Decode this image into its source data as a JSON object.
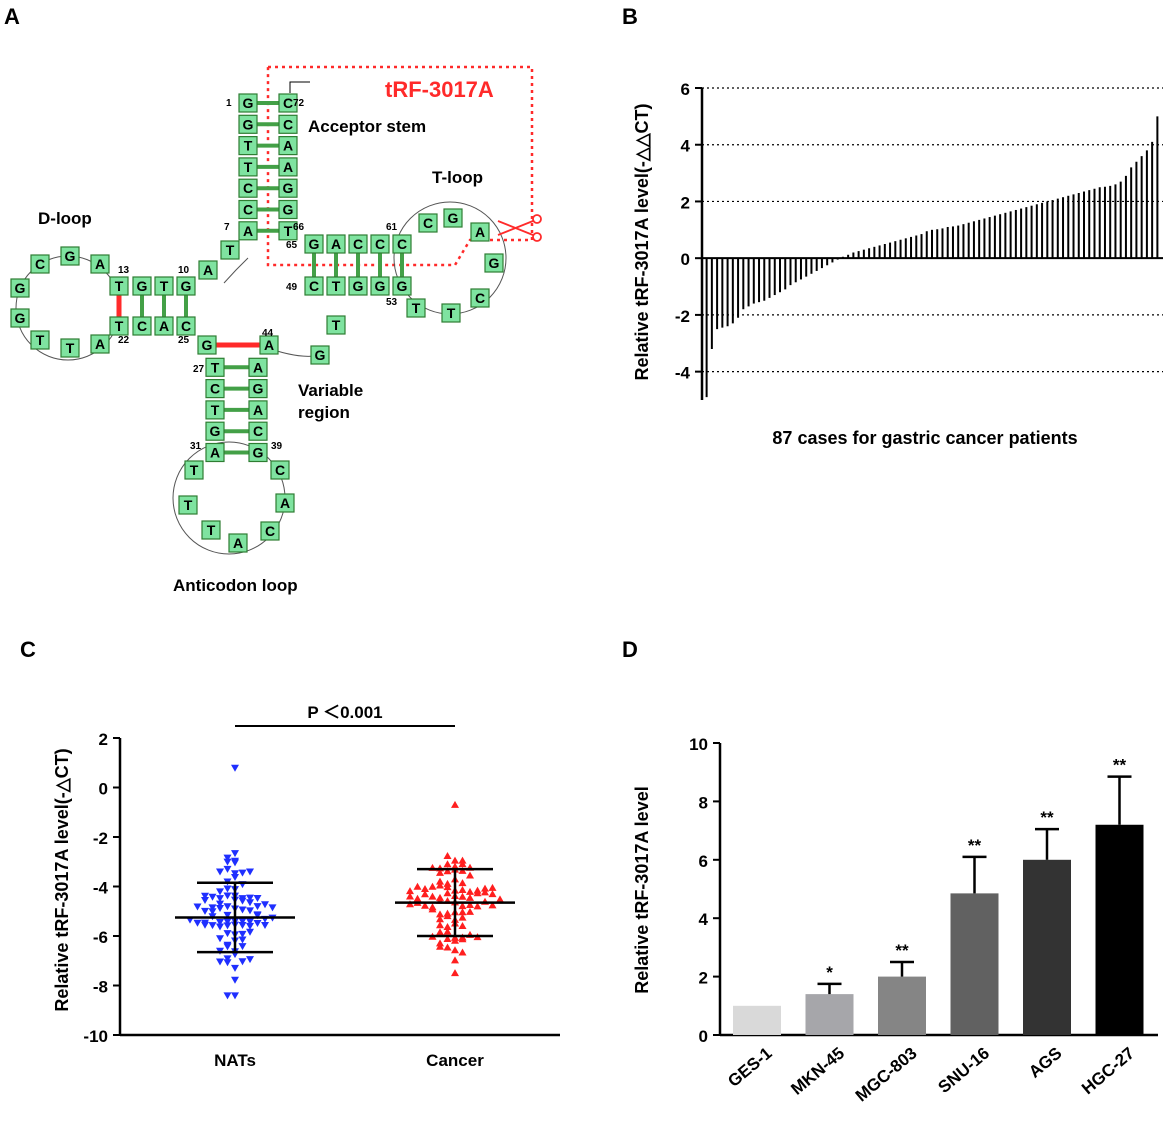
{
  "panels": {
    "a": "A",
    "b": "B",
    "c": "C",
    "d": "D"
  },
  "colors": {
    "nucleotide_fill": "#7fe3a0",
    "nucleotide_stroke": "#2e7d32",
    "highlight_red": "#ff2a2a",
    "nats_blue": "#1f2fff",
    "cancer_red": "#ff1f1f",
    "bar_colors": [
      "#d9d9d9",
      "#a6a6aa",
      "#858585",
      "#616161",
      "#333333",
      "#000000"
    ]
  },
  "structure": {
    "fragment_label": "tRF-3017A",
    "acceptor_stem": "Acceptor stem",
    "t_loop": "T-loop",
    "d_loop": "D-loop",
    "variable_region": [
      "Variable",
      "region"
    ],
    "anticodon_loop": "Anticodon loop",
    "numbers": [
      "1",
      "72",
      "7",
      "66",
      "65",
      "61",
      "49",
      "53",
      "10",
      "13",
      "22",
      "25",
      "44",
      "27",
      "31",
      "39"
    ],
    "acceptor_5prime": [
      "G",
      "G",
      "T",
      "T",
      "C",
      "C",
      "A"
    ],
    "acceptor_3prime": [
      "C",
      "C",
      "A",
      "A",
      "G",
      "G",
      "T"
    ],
    "connector_7_10": [
      "T",
      "A"
    ],
    "d_stem_top": [
      "T",
      "G",
      "T",
      "G"
    ],
    "d_stem_bottom": [
      "T",
      "C",
      "A",
      "C"
    ],
    "d_loop_seq": [
      "A",
      "G",
      "C",
      "G",
      "G",
      "T",
      "T",
      "A"
    ],
    "t_stem_top": [
      "G",
      "A",
      "C",
      "C",
      "C"
    ],
    "t_stem_bottom": [
      "C",
      "T",
      "G",
      "G",
      "G"
    ],
    "t_loop_seq": [
      "C",
      "G",
      "A",
      "G",
      "C",
      "T",
      "T"
    ],
    "anticodon_stem_left": [
      "G",
      "T",
      "C",
      "T",
      "G",
      "A"
    ],
    "anticodon_stem_right": [
      "A",
      "A",
      "G",
      "A",
      "C",
      "G"
    ],
    "anticodon_loop_seq": [
      "T",
      "T",
      "T",
      "A",
      "C",
      "A",
      "C"
    ],
    "variable_seq": [
      "G",
      "T"
    ]
  },
  "chart_data": [
    {
      "type": "bar",
      "title": "",
      "xlabel": "87 cases for gastric cancer patients",
      "ylabel": "Relative tRF-3017A level(-△△CT)",
      "ylim": [
        -5,
        6
      ],
      "yticks": [
        "6",
        "4",
        "2",
        "0",
        "-2",
        "-4"
      ],
      "grid": true,
      "values": [
        -4.9,
        -3.2,
        -2.5,
        -2.45,
        -2.4,
        -2.3,
        -2.1,
        -1.8,
        -1.7,
        -1.6,
        -1.55,
        -1.5,
        -1.4,
        -1.3,
        -1.2,
        -1.1,
        -0.95,
        -0.85,
        -0.75,
        -0.65,
        -0.55,
        -0.45,
        -0.35,
        -0.25,
        -0.15,
        -0.05,
        0.05,
        0.12,
        0.2,
        0.25,
        0.3,
        0.35,
        0.4,
        0.45,
        0.5,
        0.55,
        0.6,
        0.65,
        0.7,
        0.75,
        0.8,
        0.85,
        0.95,
        1.0,
        1.02,
        1.05,
        1.1,
        1.12,
        1.15,
        1.2,
        1.25,
        1.3,
        1.35,
        1.4,
        1.45,
        1.5,
        1.55,
        1.6,
        1.65,
        1.7,
        1.75,
        1.8,
        1.85,
        1.9,
        1.95,
        2.0,
        2.05,
        2.1,
        2.15,
        2.2,
        2.25,
        2.3,
        2.35,
        2.4,
        2.45,
        2.5,
        2.52,
        2.55,
        2.6,
        2.7,
        2.9,
        3.2,
        3.4,
        3.6,
        3.8,
        4.1,
        5.0
      ]
    },
    {
      "type": "scatter",
      "title": "P ＜0.001",
      "xlabel": "",
      "ylabel": "Relative tRF-3017A level(-△CT)",
      "ylim": [
        -10,
        2
      ],
      "yticks": [
        "2",
        "0",
        "-2",
        "-4",
        "-6",
        "-8",
        "-10"
      ],
      "categories": [
        "NATs",
        "Cancer"
      ],
      "series": [
        {
          "name": "NATs",
          "mean": -5.25,
          "sd_low": -6.65,
          "sd_high": -3.85,
          "min": -8.4,
          "max": 0.8,
          "n": 87,
          "color": "#1f2fff"
        },
        {
          "name": "Cancer",
          "mean": -4.65,
          "sd_low": -6.0,
          "sd_high": -3.3,
          "min": -7.5,
          "max": -0.7,
          "n": 87,
          "color": "#ff1f1f"
        }
      ]
    },
    {
      "type": "bar",
      "title": "",
      "xlabel": "",
      "ylabel": "Relative tRF-3017A level",
      "ylim": [
        0,
        10
      ],
      "yticks": [
        "0",
        "2",
        "4",
        "6",
        "8",
        "10"
      ],
      "categories": [
        "GES-1",
        "MKN-45",
        "MGC-803",
        "SNU-16",
        "AGS",
        "HGC-27"
      ],
      "values": [
        1.0,
        1.4,
        2.0,
        4.85,
        6.0,
        7.2
      ],
      "errors": [
        0,
        0.35,
        0.5,
        1.25,
        1.05,
        1.65
      ],
      "significance": [
        "",
        "*",
        "**",
        "**",
        "**",
        "**"
      ]
    }
  ]
}
